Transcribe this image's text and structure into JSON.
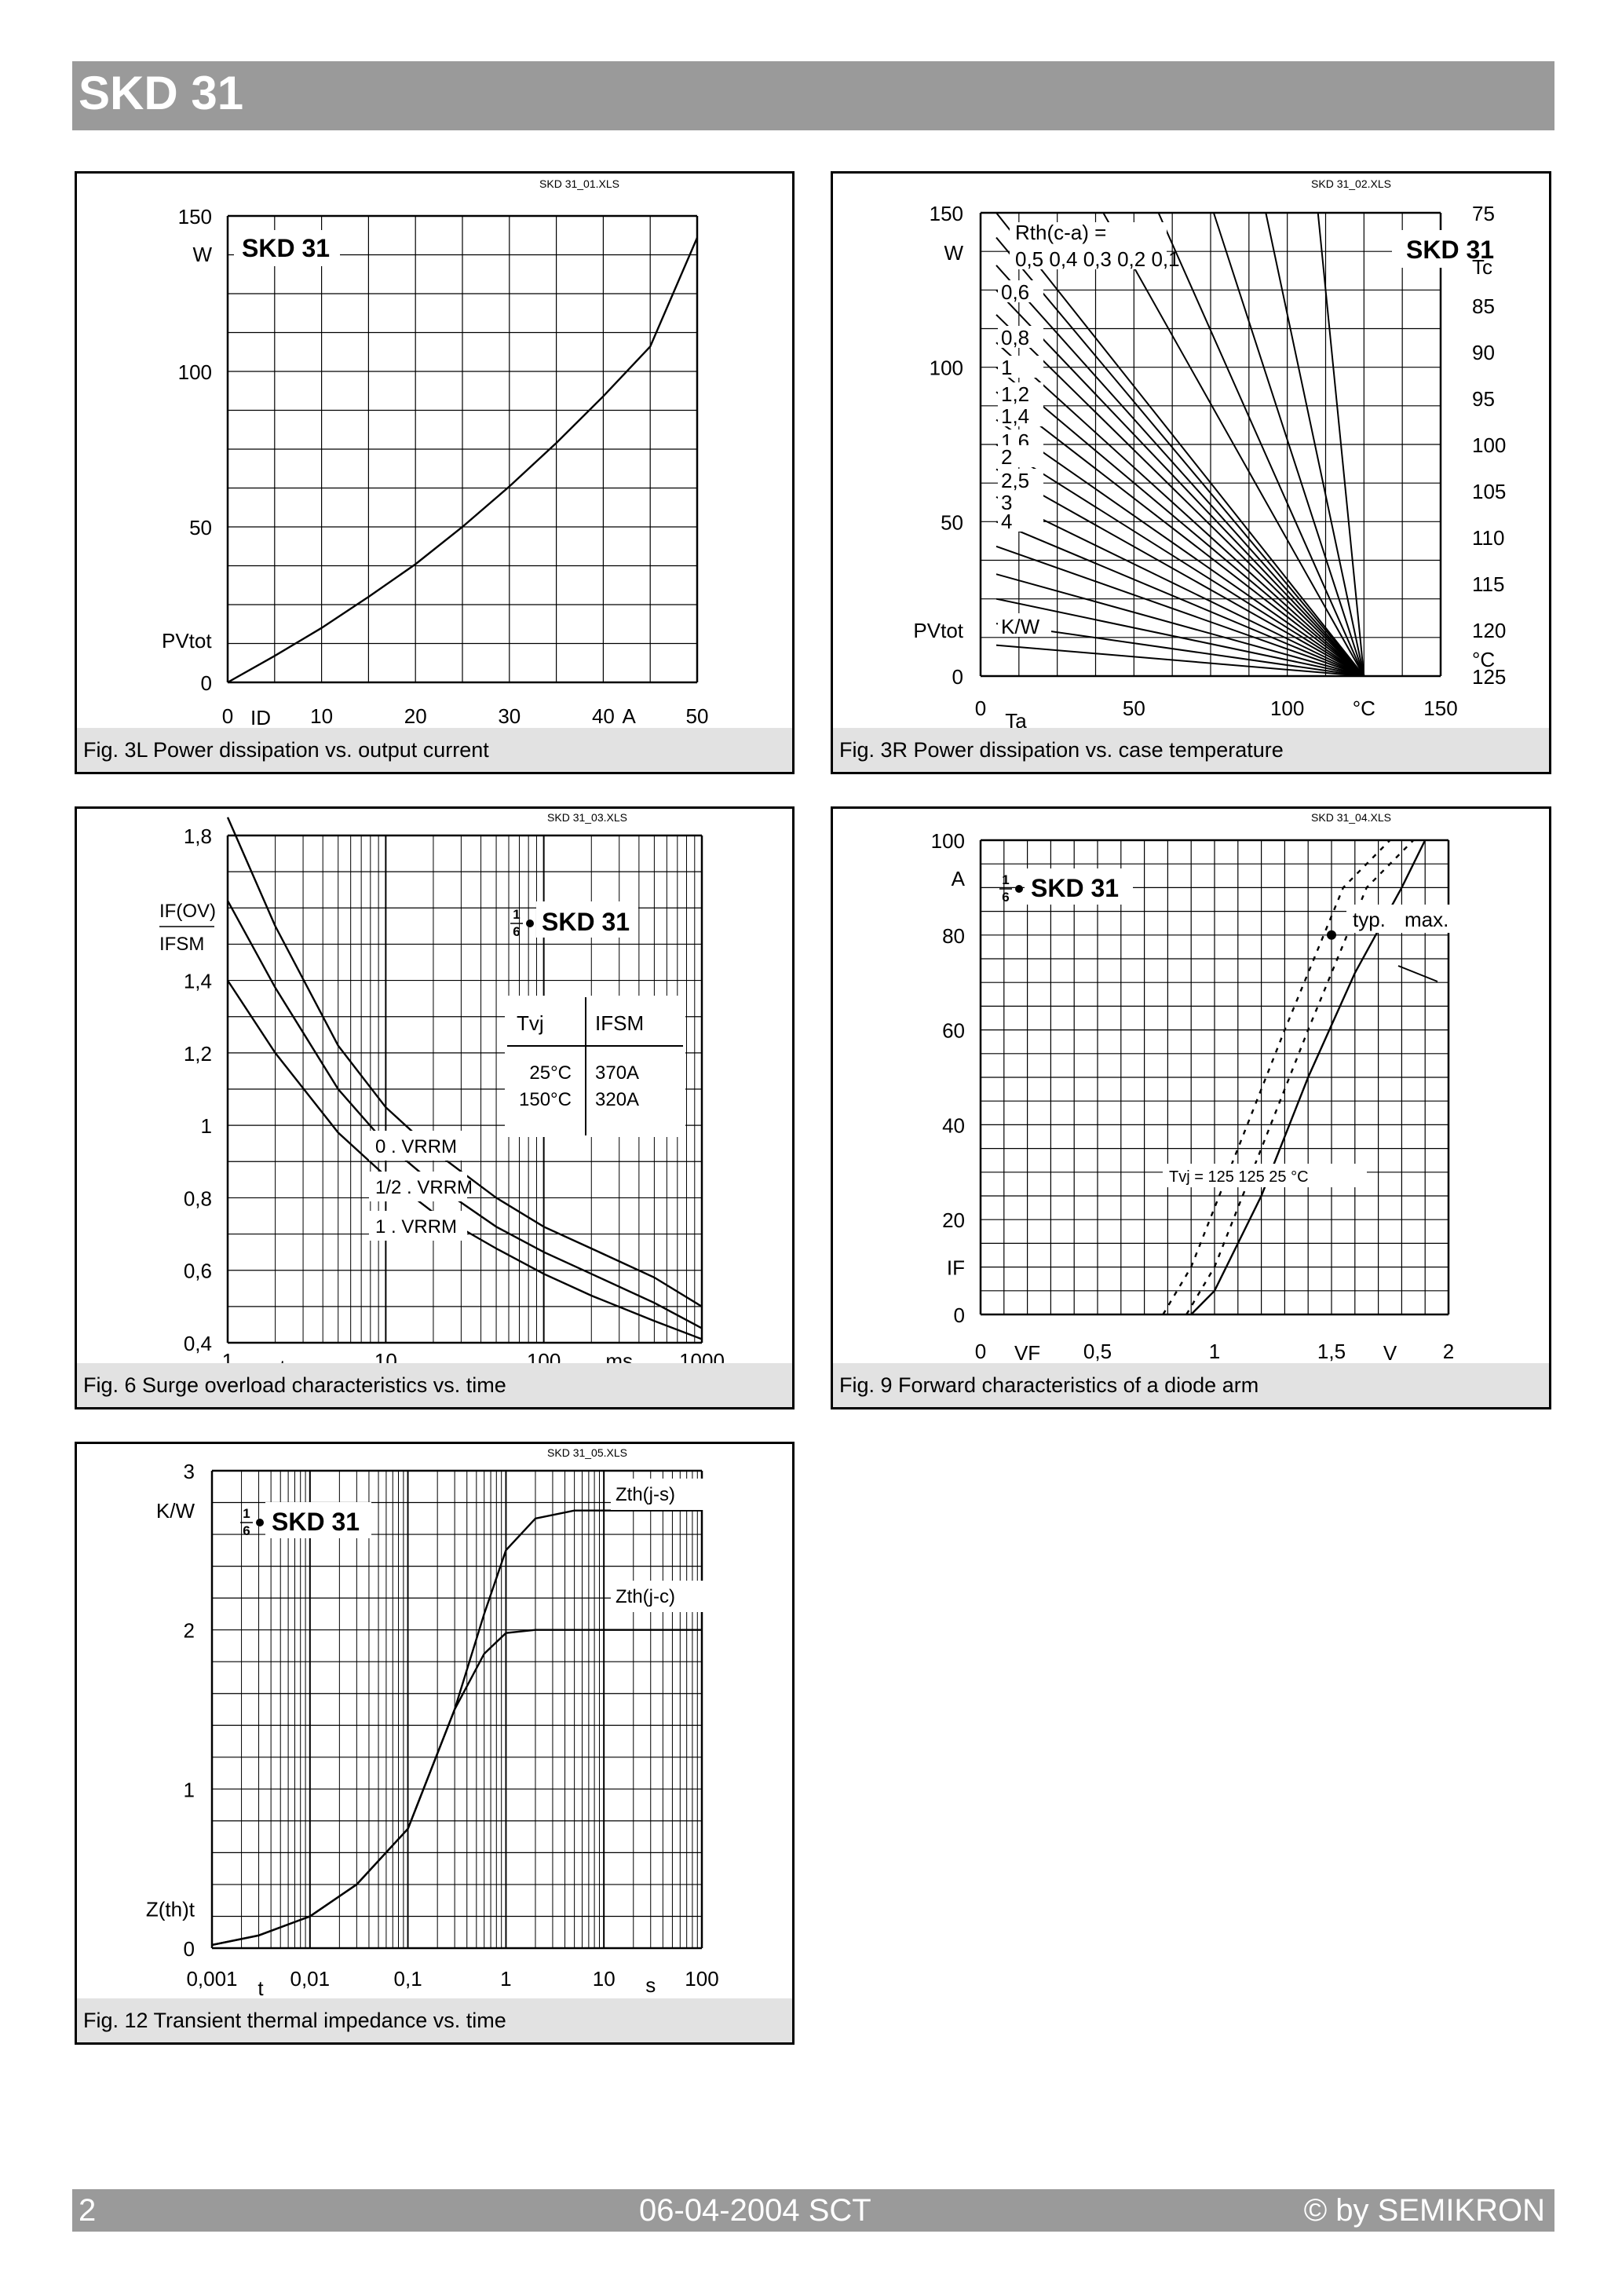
{
  "header": {
    "title": "SKD 31"
  },
  "footer": {
    "page": "2",
    "date": "06-04-2004  SCT",
    "copyright": "© by SEMIKRON"
  },
  "charts": [
    {
      "id": "fig3l",
      "file_label": "SKD 31_01.XLS",
      "caption": "Fig. 3L Power dissipation vs. output current",
      "legend_label": "SKD 31",
      "y_ticks": [
        "150",
        "100",
        "50",
        "0"
      ],
      "y_unit": "W",
      "y_name": "PVtot",
      "x_ticks": [
        "0",
        "10",
        "20",
        "30",
        "40",
        "50"
      ],
      "x_unit": "A",
      "x_name": "ID"
    },
    {
      "id": "fig3r",
      "file_label": "SKD 31_02.XLS",
      "caption": "Fig. 3R Power dissipation vs. case temperature",
      "legend_label": "SKD 31",
      "y_ticks": [
        "150",
        "100",
        "50",
        "0"
      ],
      "y_unit": "W",
      "y_name": "PVtot",
      "y2_ticks": [
        "75",
        "85",
        "90",
        "95",
        "100",
        "105",
        "110",
        "115",
        "120",
        "125"
      ],
      "y2_name": "Tc",
      "y2_unit": "°C",
      "x_ticks": [
        "0",
        "50",
        "100",
        "150"
      ],
      "x_unit": "°C",
      "x_name": "Ta",
      "rth_title": "Rth(c-a) =",
      "rth_top_row": "0,5  0,4  0,3  0,2  0,1",
      "rth_left": [
        "0,6",
        "0,8",
        "1",
        "1,2",
        "1,4",
        "1,6",
        "2",
        "2,5",
        "3",
        "4"
      ],
      "rth_unit": "K/W"
    },
    {
      "id": "fig6",
      "file_label": "SKD 31_03.XLS",
      "caption": "Fig. 6 Surge overload characteristics vs. time",
      "legend_label": "SKD 31",
      "legend_fraction": "1/6",
      "y_ticks": [
        "1,8",
        "1,4",
        "1,2",
        "1",
        "0,8",
        "0,6",
        "0,4"
      ],
      "y_name_top": "IF(OV)",
      "y_name_bottom": "IFSM",
      "x_ticks": [
        "1",
        "10",
        "100",
        "1000"
      ],
      "x_unit": "ms",
      "x_name": "t",
      "table_header": [
        "Tvj",
        "IFSM"
      ],
      "table_rows": [
        [
          "25°C",
          "370A"
        ],
        [
          "150°C",
          "320A"
        ]
      ],
      "curve_labels": [
        "0 . VRRM",
        "1/2 . VRRM",
        "1 . VRRM"
      ]
    },
    {
      "id": "fig9",
      "file_label": "SKD 31_04.XLS",
      "caption": "Fig. 9 Forward characteristics of a diode arm",
      "legend_label": "SKD 31",
      "legend_fraction": "1/6",
      "y_ticks": [
        "100",
        "80",
        "60",
        "40",
        "20",
        "0"
      ],
      "y_unit": "A",
      "y_name": "IF",
      "x_ticks": [
        "0",
        "0,5",
        "1",
        "1,5",
        "2"
      ],
      "x_unit": "V",
      "x_name": "VF",
      "typ_label": "typ.",
      "max_label": "max.",
      "tvj_label": "Tvj = 125  125  25  °C"
    },
    {
      "id": "fig12",
      "file_label": "SKD 31_05.XLS",
      "caption": "Fig. 12 Transient thermal impedance vs. time",
      "legend_label": "SKD 31",
      "legend_fraction": "1/6",
      "y_ticks": [
        "3",
        "2",
        "1",
        "0"
      ],
      "y_unit": "K/W",
      "y_name": "Z(th)t",
      "x_ticks": [
        "0,001",
        "0,01",
        "0,1",
        "1",
        "10",
        "100"
      ],
      "x_unit": "s",
      "x_name": "t",
      "curve_labels": [
        "Zth(j-s)",
        "Zth(j-c)"
      ]
    }
  ],
  "chart_data": [
    {
      "type": "line",
      "title": "Fig. 3L Power dissipation vs. output current",
      "xlabel": "ID",
      "ylabel": "PVtot",
      "x_unit": "A",
      "y_unit": "W",
      "xlim": [
        0,
        50
      ],
      "ylim": [
        0,
        150
      ],
      "series": [
        {
          "x": [
            0,
            5,
            10,
            15,
            20,
            25,
            30,
            35,
            40,
            45,
            50
          ],
          "y": [
            0,
            8.5,
            17.5,
            27.5,
            38,
            50,
            63,
            77,
            92,
            108,
            143
          ]
        }
      ]
    },
    {
      "type": "line",
      "title": "Fig. 3R Power dissipation vs. case temperature",
      "xlabel": "Ta",
      "ylabel": "PVtot",
      "x_unit": "°C",
      "y_unit": "W",
      "xlim": [
        0,
        150
      ],
      "ylim": [
        0,
        150
      ],
      "rth_values": [
        "0,1",
        "0,2",
        "0,3",
        "0,4",
        "0,5",
        "0,6",
        "0,8",
        "1",
        "1,2",
        "1,4",
        "1,6",
        "2",
        "2,5",
        "3",
        "4"
      ]
    },
    {
      "type": "line",
      "title": "Fig. 6 Surge overload characteristics vs. time",
      "xlabel": "t",
      "ylabel": "IF(OV)/IFSM",
      "x_unit": "ms",
      "x_scale": "log",
      "xlim": [
        1,
        1000
      ],
      "ylim": [
        0.4,
        1.8
      ],
      "series": [
        {
          "name": "0 . VRRM",
          "x": [
            1,
            2,
            5,
            10,
            20,
            50,
            100,
            200,
            500,
            1000
          ],
          "y": [
            1.85,
            1.55,
            1.22,
            1.05,
            0.93,
            0.8,
            0.72,
            0.66,
            0.58,
            0.5
          ]
        },
        {
          "name": "1/2 . VRRM",
          "x": [
            1,
            2,
            5,
            10,
            20,
            50,
            100,
            200,
            500,
            1000
          ],
          "y": [
            1.62,
            1.38,
            1.1,
            0.95,
            0.84,
            0.72,
            0.65,
            0.59,
            0.51,
            0.44
          ]
        },
        {
          "name": "1 . VRRM",
          "x": [
            1,
            2,
            5,
            10,
            20,
            50,
            100,
            200,
            500,
            1000
          ],
          "y": [
            1.4,
            1.2,
            0.98,
            0.86,
            0.76,
            0.66,
            0.59,
            0.53,
            0.46,
            0.41
          ]
        }
      ]
    },
    {
      "type": "line",
      "title": "Fig. 9 Forward characteristics of a diode arm",
      "xlabel": "VF",
      "ylabel": "IF",
      "x_unit": "V",
      "y_unit": "A",
      "xlim": [
        0,
        2
      ],
      "ylim": [
        0,
        100
      ],
      "series": [
        {
          "name": "typ. 125°C",
          "style": "dotted",
          "x": [
            0.78,
            0.9,
            1.1,
            1.3,
            1.55,
            1.75
          ],
          "y": [
            0,
            10,
            35,
            60,
            90,
            100
          ]
        },
        {
          "name": "max. 125°C",
          "style": "dotted",
          "x": [
            0.88,
            1.0,
            1.2,
            1.4,
            1.65,
            1.85
          ],
          "y": [
            0,
            10,
            35,
            60,
            90,
            100
          ]
        },
        {
          "name": "typ. 25°C",
          "style": "solid",
          "x": [
            0.9,
            1.0,
            1.2,
            1.4,
            1.6,
            1.8,
            1.9
          ],
          "y": [
            0,
            5,
            25,
            50,
            72,
            90,
            100
          ]
        }
      ]
    },
    {
      "type": "line",
      "title": "Fig. 12 Transient thermal impedance vs. time",
      "xlabel": "t",
      "ylabel": "Z(th)t",
      "x_unit": "s",
      "y_unit": "K/W",
      "x_scale": "log",
      "xlim": [
        0.001,
        100
      ],
      "ylim": [
        0,
        3
      ],
      "series": [
        {
          "name": "Zth(j-s)",
          "x": [
            0.001,
            0.003,
            0.01,
            0.03,
            0.1,
            0.3,
            0.6,
            1,
            2,
            5,
            10,
            100
          ],
          "y": [
            0.02,
            0.08,
            0.2,
            0.4,
            0.75,
            1.5,
            2.1,
            2.5,
            2.7,
            2.75,
            2.75,
            2.75
          ]
        },
        {
          "name": "Zth(j-c)",
          "x": [
            0.001,
            0.003,
            0.01,
            0.03,
            0.1,
            0.3,
            0.6,
            1,
            2,
            5,
            10,
            100
          ],
          "y": [
            0.02,
            0.08,
            0.2,
            0.4,
            0.75,
            1.5,
            1.85,
            1.98,
            2.0,
            2.0,
            2.0,
            2.0
          ]
        }
      ]
    }
  ]
}
